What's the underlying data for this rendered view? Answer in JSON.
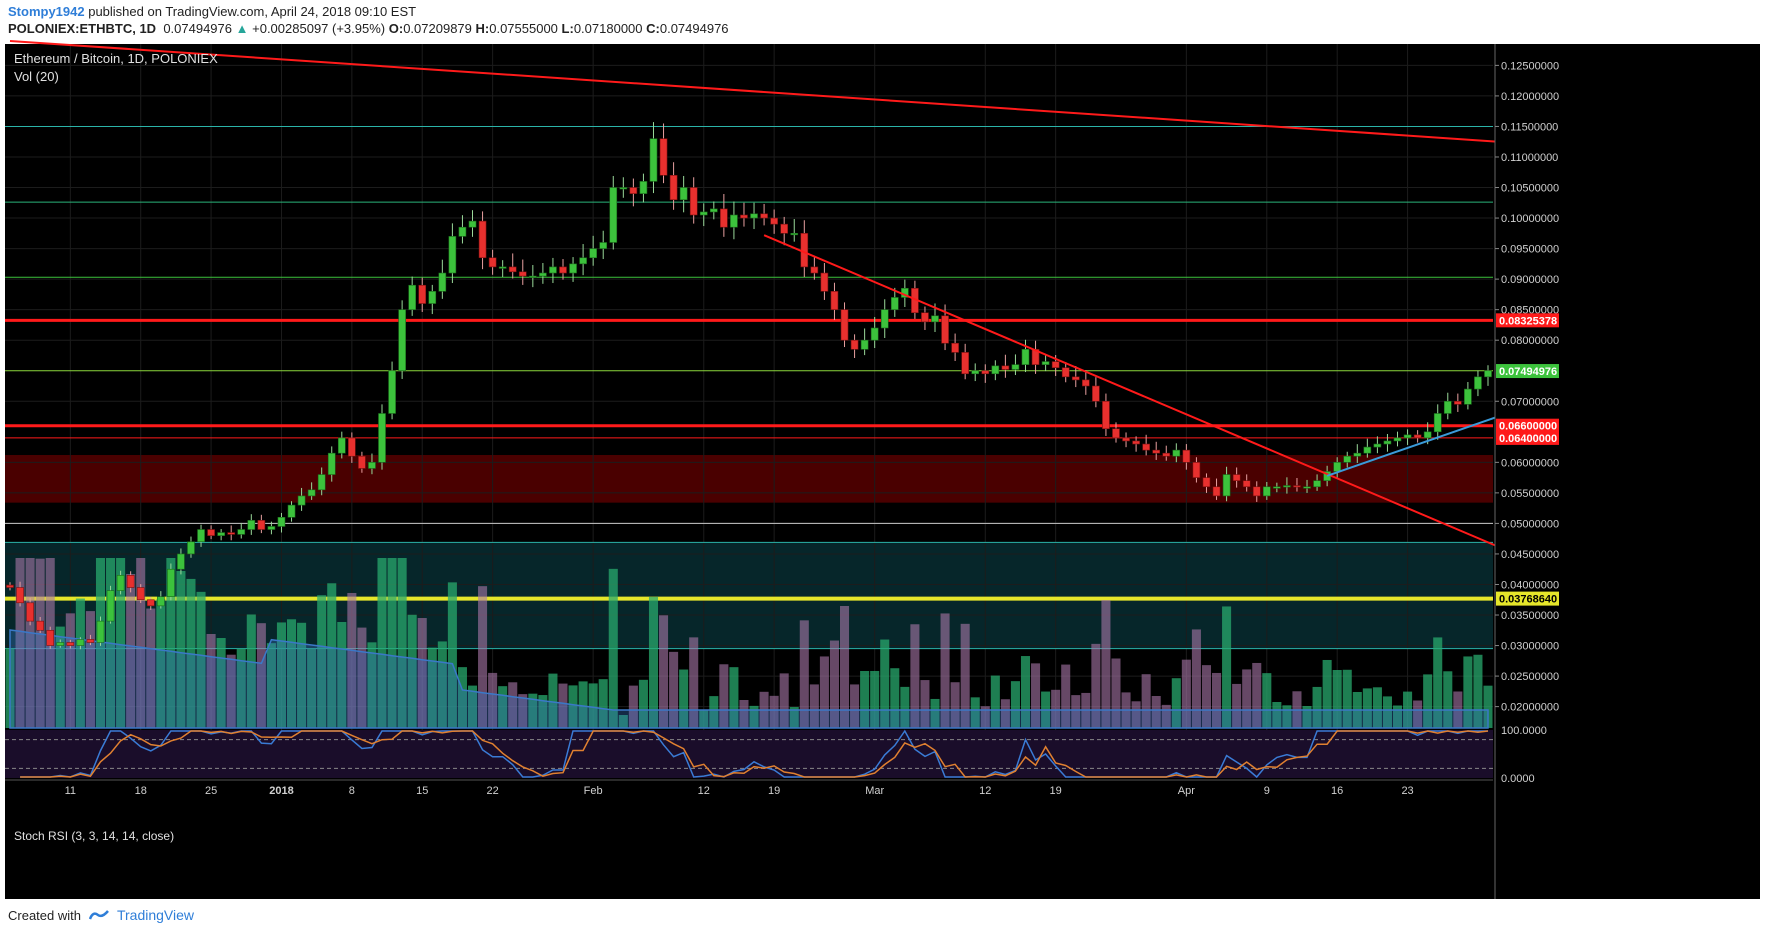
{
  "header": {
    "author": "Stompy1942",
    "published": "published on TradingView.com, April 24, 2018 09:10 EST",
    "symbol": "POLONIEX:ETHBTC, 1D",
    "last": "0.07494976",
    "change_arrow": "▲",
    "change": "+0.00285097 (+3.95%)",
    "open_label": "O:",
    "open": "0.07209879",
    "high_label": "H:",
    "high": "0.07555000",
    "low_label": "L:",
    "low": "0.07180000",
    "close_label": "C:",
    "close": "0.07494976"
  },
  "legend": {
    "title": "Ethereum / Bitcoin, 1D, POLONIEX",
    "volume": "Vol (20)",
    "stoch": "Stoch RSI (3, 3, 14, 14, close)"
  },
  "footer": {
    "created": "Created with",
    "brand": "TradingView"
  },
  "colors": {
    "bull": "#3cc23c",
    "bear": "#e8302e",
    "bg": "#000000",
    "resistance": "#ff1a1a",
    "support_yellow": "#e6e62a",
    "trend_blue": "#3a9ad9",
    "zone_red": "#4a0000",
    "zone_teal": "#06262a"
  },
  "chart_data": {
    "type": "candlestick",
    "title": "Ethereum / Bitcoin, 1D, POLONIEX",
    "ylim": [
      0.0165,
      0.1285
    ],
    "price_ticks": [
      "0.12500000",
      "0.12000000",
      "0.11500000",
      "0.11000000",
      "0.10500000",
      "0.10000000",
      "0.09500000",
      "0.09000000",
      "0.08500000",
      "0.08000000",
      "0.07000000",
      "0.06000000",
      "0.05500000",
      "0.05000000",
      "0.04500000",
      "0.04000000",
      "0.03500000",
      "0.03000000",
      "0.02500000",
      "0.02000000"
    ],
    "price_levels": [
      {
        "label": "0.08325378",
        "value": 0.08325378,
        "color": "#ff1a1a"
      },
      {
        "label": "0.07494976",
        "value": 0.07494976,
        "color": "#3cc23c"
      },
      {
        "label": "0.06600000",
        "value": 0.066,
        "color": "#ff1a1a"
      },
      {
        "label": "0.06400000",
        "value": 0.064,
        "color": "#ff1a1a"
      },
      {
        "label": "0.03768640",
        "value": 0.0376864,
        "color": "#e6e62a"
      }
    ],
    "horizontal_lines": [
      {
        "value": 0.115,
        "color": "#2bb3a8"
      },
      {
        "value": 0.1026,
        "color": "#2bb37a"
      },
      {
        "value": 0.0903,
        "color": "#3cc23c"
      },
      {
        "value": 0.075,
        "color": "#8bd63c"
      },
      {
        "value": 0.05,
        "color": "#c8c8c8"
      },
      {
        "value": 0.0469,
        "color": "#2bb3a8"
      },
      {
        "value": 0.0295,
        "color": "#2bb3a8"
      }
    ],
    "zones": [
      {
        "from": 0.0534,
        "to": 0.0612,
        "color": "#4a0000"
      },
      {
        "from": 0.0295,
        "to": 0.0469,
        "color": "#06262a"
      }
    ],
    "trendlines": [
      {
        "x1": 0,
        "y1": 0.129,
        "x2": 148,
        "y2": 0.1125,
        "color": "#ff1a1a"
      },
      {
        "x1": 75,
        "y1": 0.0972,
        "x2": 148,
        "y2": 0.0462,
        "color": "#ff1a1a"
      },
      {
        "x1": 131,
        "y1": 0.0578,
        "x2": 148,
        "y2": 0.0675,
        "color": "#3a9ad9"
      }
    ],
    "x_ticks": [
      {
        "label": "11",
        "i": 6
      },
      {
        "label": "18",
        "i": 13
      },
      {
        "label": "25",
        "i": 20
      },
      {
        "label": "2018",
        "i": 27
      },
      {
        "label": "8",
        "i": 34
      },
      {
        "label": "15",
        "i": 41
      },
      {
        "label": "22",
        "i": 48
      },
      {
        "label": "Feb",
        "i": 58
      },
      {
        "label": "12",
        "i": 69
      },
      {
        "label": "19",
        "i": 76
      },
      {
        "label": "Mar",
        "i": 86
      },
      {
        "label": "12",
        "i": 97
      },
      {
        "label": "19",
        "i": 104
      },
      {
        "label": "Apr",
        "i": 117
      },
      {
        "label": "9",
        "i": 125
      },
      {
        "label": "16",
        "i": 132
      },
      {
        "label": "23",
        "i": 139
      }
    ],
    "closes": [
      0.0395,
      0.037,
      0.034,
      0.0325,
      0.03,
      0.0305,
      0.03,
      0.031,
      0.0305,
      0.034,
      0.039,
      0.0415,
      0.0395,
      0.0375,
      0.0365,
      0.038,
      0.0425,
      0.045,
      0.047,
      0.049,
      0.048,
      0.0485,
      0.0482,
      0.049,
      0.0505,
      0.049,
      0.0495,
      0.051,
      0.053,
      0.0545,
      0.0555,
      0.058,
      0.0615,
      0.064,
      0.061,
      0.059,
      0.06,
      0.068,
      0.075,
      0.085,
      0.089,
      0.086,
      0.088,
      0.091,
      0.097,
      0.0985,
      0.0995,
      0.0935,
      0.092,
      0.092,
      0.0912,
      0.0905,
      0.0905,
      0.091,
      0.092,
      0.091,
      0.0925,
      0.0935,
      0.095,
      0.096,
      0.105,
      0.105,
      0.104,
      0.106,
      0.113,
      0.107,
      0.103,
      0.105,
      0.1005,
      0.101,
      0.1015,
      0.0985,
      0.1005,
      0.1,
      0.1007,
      0.1,
      0.099,
      0.0975,
      0.0975,
      0.092,
      0.091,
      0.088,
      0.085,
      0.08,
      0.0785,
      0.08,
      0.082,
      0.085,
      0.087,
      0.0885,
      0.0845,
      0.083,
      0.084,
      0.0795,
      0.078,
      0.0745,
      0.075,
      0.0745,
      0.0758,
      0.0752,
      0.076,
      0.0785,
      0.076,
      0.0765,
      0.0755,
      0.074,
      0.0735,
      0.0725,
      0.07,
      0.0655,
      0.064,
      0.0635,
      0.063,
      0.062,
      0.0615,
      0.061,
      0.062,
      0.06,
      0.0575,
      0.056,
      0.0545,
      0.058,
      0.057,
      0.056,
      0.0545,
      0.056,
      0.056,
      0.0562,
      0.056,
      0.056,
      0.057,
      0.0585,
      0.06,
      0.061,
      0.0615,
      0.0625,
      0.063,
      0.0635,
      0.064,
      0.0645,
      0.064,
      0.065,
      0.068,
      0.07,
      0.0695,
      0.072,
      0.074,
      0.075
    ],
    "stoch_ylim": [
      0,
      100
    ],
    "stoch_ticks": [
      "100.0000",
      "0.0000"
    ]
  }
}
